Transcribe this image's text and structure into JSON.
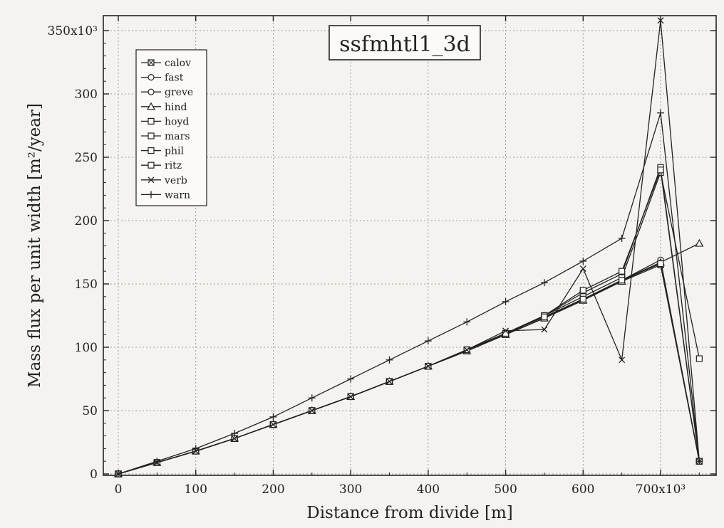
{
  "chart_data": {
    "type": "line",
    "title": "ssfmhtl1_3d",
    "xlabel": "Distance from divide  [m]",
    "ylabel": "Mass flux per unit width  [m²/year]",
    "xlim": [
      0,
      750000
    ],
    "ylim": [
      0,
      350000
    ],
    "grid": true,
    "legend_position": "top-left",
    "x_ticks": [
      0,
      100000,
      200000,
      300000,
      400000,
      500000,
      600000,
      700000
    ],
    "x_tick_labels": [
      "0",
      "100",
      "200",
      "300",
      "400",
      "500",
      "600",
      "700x10³"
    ],
    "y_ticks": [
      0,
      50000,
      100000,
      150000,
      200000,
      250000,
      300000,
      350000
    ],
    "y_tick_labels": [
      "0",
      "50",
      "100",
      "150",
      "200",
      "250",
      "300",
      "350x10³"
    ],
    "series": [
      {
        "name": "calov",
        "marker": "square-x",
        "x": [
          0,
          50000,
          100000,
          150000,
          200000,
          250000,
          300000,
          350000,
          400000,
          450000,
          500000,
          550000,
          600000,
          650000,
          700000,
          750000
        ],
        "y": [
          0,
          9000,
          18000,
          28000,
          39000,
          50000,
          61000,
          73000,
          85000,
          97000,
          110000,
          123000,
          138000,
          152000,
          165000,
          10000
        ]
      },
      {
        "name": "fast",
        "marker": "circle",
        "x": [
          0,
          50000,
          100000,
          150000,
          200000,
          250000,
          300000,
          350000,
          400000,
          450000,
          500000,
          550000,
          600000,
          650000,
          700000,
          750000
        ],
        "y": [
          0,
          9000,
          18000,
          28000,
          39000,
          50000,
          61000,
          73000,
          85000,
          98000,
          111000,
          124000,
          138000,
          153000,
          167000,
          10000
        ]
      },
      {
        "name": "greve",
        "marker": "circle",
        "x": [
          0,
          50000,
          100000,
          150000,
          200000,
          250000,
          300000,
          350000,
          400000,
          450000,
          500000,
          550000,
          600000,
          650000,
          700000,
          750000
        ],
        "y": [
          0,
          9000,
          18000,
          28000,
          39000,
          50000,
          61000,
          73000,
          85000,
          98000,
          111000,
          124000,
          138000,
          153000,
          169000,
          10000
        ]
      },
      {
        "name": "hind",
        "marker": "triangle",
        "x": [
          0,
          50000,
          100000,
          150000,
          200000,
          250000,
          300000,
          350000,
          400000,
          450000,
          500000,
          550000,
          600000,
          650000,
          700000,
          750000
        ],
        "y": [
          0,
          9000,
          18000,
          28000,
          39000,
          50000,
          61000,
          73000,
          85000,
          97000,
          110000,
          123000,
          137000,
          152000,
          167000,
          182000
        ]
      },
      {
        "name": "hoyd",
        "marker": "square",
        "x": [
          0,
          50000,
          100000,
          150000,
          200000,
          250000,
          300000,
          350000,
          400000,
          450000,
          500000,
          550000,
          600000,
          650000,
          700000,
          750000
        ],
        "y": [
          0,
          9000,
          18000,
          28000,
          39000,
          50000,
          61000,
          73000,
          85000,
          98000,
          110000,
          125000,
          143000,
          158000,
          242000,
          10000
        ]
      },
      {
        "name": "mars",
        "marker": "square",
        "x": [
          0,
          50000,
          100000,
          150000,
          200000,
          250000,
          300000,
          350000,
          400000,
          450000,
          500000,
          550000,
          600000,
          650000,
          700000,
          750000
        ],
        "y": [
          0,
          9000,
          18000,
          28000,
          39000,
          50000,
          61000,
          73000,
          85000,
          98000,
          111000,
          125000,
          140000,
          155000,
          238000,
          91000
        ]
      },
      {
        "name": "phil",
        "marker": "square",
        "x": [
          0,
          50000,
          100000,
          150000,
          200000,
          250000,
          300000,
          350000,
          400000,
          450000,
          500000,
          550000,
          600000,
          650000,
          700000,
          750000
        ],
        "y": [
          0,
          9000,
          18000,
          28000,
          39000,
          50000,
          61000,
          73000,
          85000,
          98000,
          111000,
          125000,
          145000,
          160000,
          240000,
          10000
        ]
      },
      {
        "name": "ritz",
        "marker": "square",
        "x": [
          0,
          50000,
          100000,
          150000,
          200000,
          250000,
          300000,
          350000,
          400000,
          450000,
          500000,
          550000,
          600000,
          650000,
          700000,
          750000
        ],
        "y": [
          0,
          9000,
          18000,
          28000,
          39000,
          50000,
          61000,
          73000,
          85000,
          98000,
          111000,
          124000,
          138000,
          153000,
          166000,
          10000
        ]
      },
      {
        "name": "verb",
        "marker": "x",
        "x": [
          0,
          50000,
          100000,
          150000,
          200000,
          250000,
          300000,
          350000,
          400000,
          450000,
          500000,
          550000,
          600000,
          650000,
          700000,
          750000
        ],
        "y": [
          0,
          9000,
          18000,
          28000,
          39000,
          50000,
          61000,
          73000,
          85000,
          98000,
          113000,
          114000,
          162000,
          90000,
          358000,
          10000
        ]
      },
      {
        "name": "warn",
        "marker": "plus",
        "x": [
          0,
          50000,
          100000,
          150000,
          200000,
          250000,
          300000,
          350000,
          400000,
          450000,
          500000,
          550000,
          600000,
          650000,
          700000,
          750000
        ],
        "y": [
          0,
          10000,
          20000,
          32000,
          45000,
          60000,
          75000,
          90000,
          105000,
          120000,
          136000,
          151000,
          168000,
          186000,
          285000,
          10000
        ]
      }
    ]
  }
}
